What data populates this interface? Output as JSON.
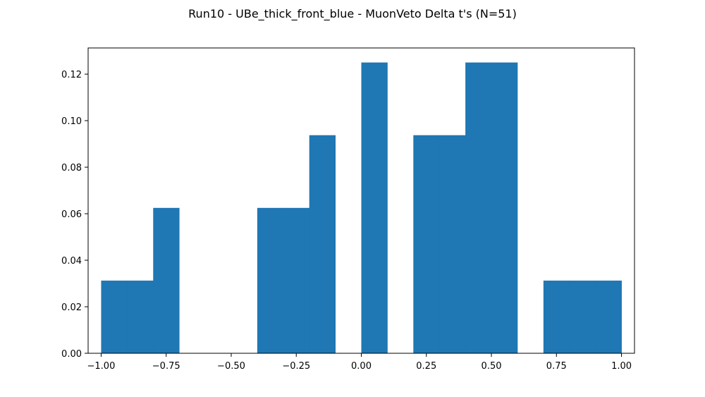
{
  "chart_data": {
    "type": "bar",
    "title": "Run10 - UBe_thick_front_blue - MuonVeto Delta t's (N=51)",
    "xlabel": "",
    "ylabel": "",
    "xlim": [
      -1.05,
      1.05
    ],
    "ylim": [
      0,
      0.13125
    ],
    "bar_color": "#1f77b4",
    "bins": [
      {
        "x0": -1.0,
        "x1": -0.9,
        "value": 0.03125
      },
      {
        "x0": -0.9,
        "x1": -0.8,
        "value": 0.03125
      },
      {
        "x0": -0.8,
        "x1": -0.7,
        "value": 0.0625
      },
      {
        "x0": -0.7,
        "x1": -0.6,
        "value": 0
      },
      {
        "x0": -0.6,
        "x1": -0.5,
        "value": 0
      },
      {
        "x0": -0.5,
        "x1": -0.4,
        "value": 0
      },
      {
        "x0": -0.4,
        "x1": -0.3,
        "value": 0.0625
      },
      {
        "x0": -0.3,
        "x1": -0.2,
        "value": 0.0625
      },
      {
        "x0": -0.2,
        "x1": -0.1,
        "value": 0.09375
      },
      {
        "x0": -0.1,
        "x1": 0.0,
        "value": 0
      },
      {
        "x0": 0.0,
        "x1": 0.1,
        "value": 0.125
      },
      {
        "x0": 0.1,
        "x1": 0.2,
        "value": 0
      },
      {
        "x0": 0.2,
        "x1": 0.3,
        "value": 0.09375
      },
      {
        "x0": 0.3,
        "x1": 0.4,
        "value": 0.09375
      },
      {
        "x0": 0.4,
        "x1": 0.5,
        "value": 0.125
      },
      {
        "x0": 0.5,
        "x1": 0.6,
        "value": 0.125
      },
      {
        "x0": 0.6,
        "x1": 0.7,
        "value": 0
      },
      {
        "x0": 0.7,
        "x1": 0.8,
        "value": 0.03125
      },
      {
        "x0": 0.8,
        "x1": 0.9,
        "value": 0.03125
      },
      {
        "x0": 0.9,
        "x1": 1.0,
        "value": 0.03125
      }
    ],
    "x_ticks": [
      {
        "value": -1.0,
        "label": "−1.00"
      },
      {
        "value": -0.75,
        "label": "−0.75"
      },
      {
        "value": -0.5,
        "label": "−0.50"
      },
      {
        "value": -0.25,
        "label": "−0.25"
      },
      {
        "value": 0.0,
        "label": "0.00"
      },
      {
        "value": 0.25,
        "label": "0.25"
      },
      {
        "value": 0.5,
        "label": "0.50"
      },
      {
        "value": 0.75,
        "label": "0.75"
      },
      {
        "value": 1.0,
        "label": "1.00"
      }
    ],
    "y_ticks": [
      {
        "value": 0.0,
        "label": "0.00"
      },
      {
        "value": 0.02,
        "label": "0.02"
      },
      {
        "value": 0.04,
        "label": "0.04"
      },
      {
        "value": 0.06,
        "label": "0.06"
      },
      {
        "value": 0.08,
        "label": "0.08"
      },
      {
        "value": 0.1,
        "label": "0.10"
      },
      {
        "value": 0.12,
        "label": "0.12"
      }
    ],
    "grid": false,
    "legend": "none"
  }
}
